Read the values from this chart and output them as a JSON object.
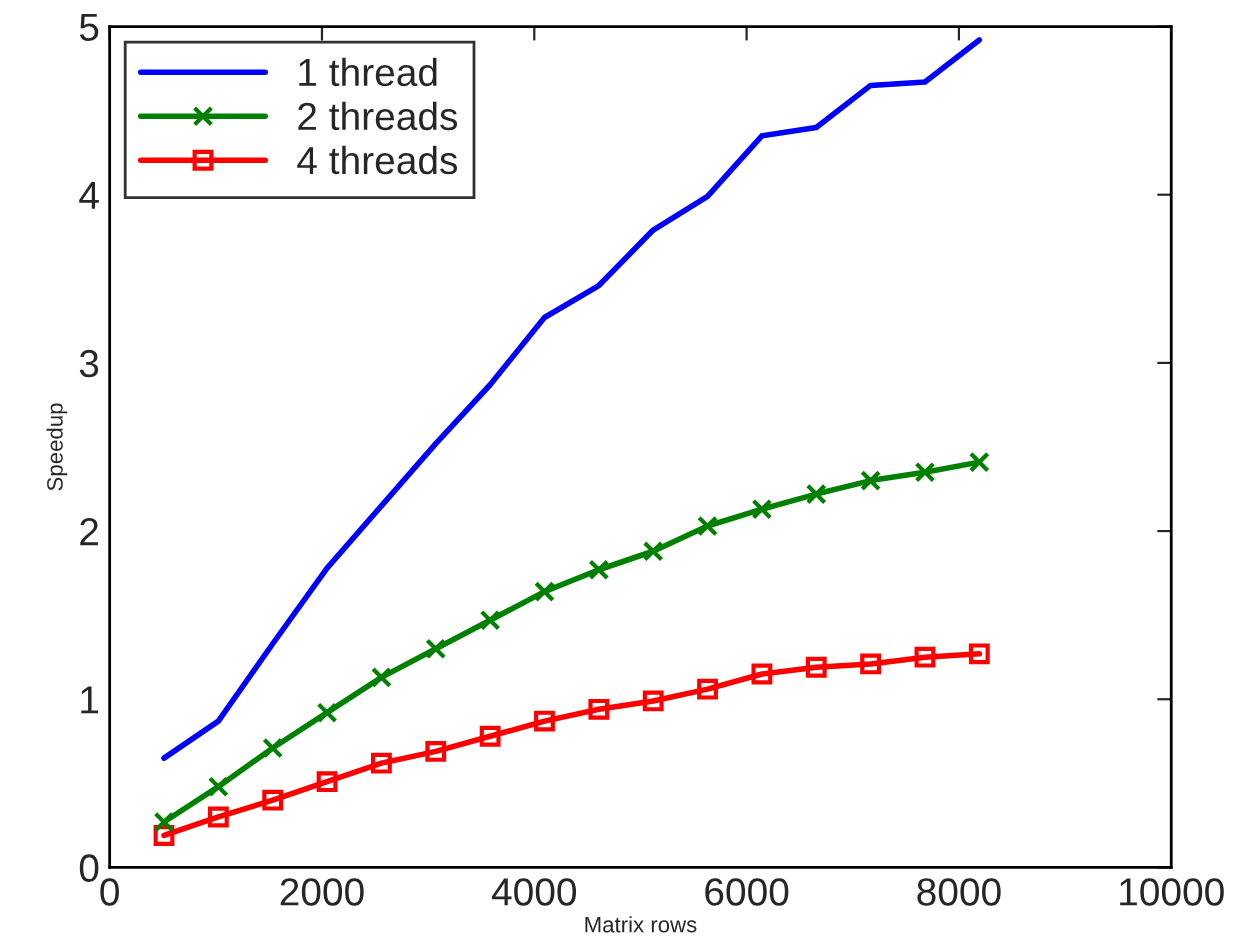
{
  "chart_data": {
    "type": "line",
    "xlabel": "Matrix rows",
    "ylabel": "Speedup",
    "x": [
      512,
      1024,
      1536,
      2048,
      2560,
      3072,
      3584,
      4096,
      4608,
      5120,
      5632,
      6144,
      6656,
      7168,
      7680,
      8192
    ],
    "series": [
      {
        "name": "1 thread",
        "color": "#0000ff",
        "marker": "none",
        "values": [
          0.65,
          0.87,
          1.33,
          1.78,
          2.15,
          2.52,
          2.87,
          3.27,
          3.46,
          3.79,
          3.99,
          4.35,
          4.4,
          4.65,
          4.67,
          4.92
        ]
      },
      {
        "name": "2 threads",
        "color": "#008000",
        "marker": "cross",
        "values": [
          0.27,
          0.48,
          0.71,
          0.92,
          1.13,
          1.3,
          1.47,
          1.64,
          1.77,
          1.88,
          2.03,
          2.13,
          2.22,
          2.3,
          2.35,
          2.41
        ]
      },
      {
        "name": "4 threads",
        "color": "#ff0000",
        "marker": "square",
        "values": [
          0.19,
          0.3,
          0.4,
          0.51,
          0.62,
          0.69,
          0.78,
          0.87,
          0.94,
          0.99,
          1.06,
          1.15,
          1.19,
          1.21,
          1.25,
          1.27
        ]
      }
    ],
    "xlim": [
      0,
      10000
    ],
    "xticks": [
      0,
      2000,
      4000,
      6000,
      8000,
      10000
    ],
    "ylim": [
      0,
      5
    ],
    "yticks": [
      0,
      1,
      2,
      3,
      4,
      5
    ],
    "grid": false,
    "legend": "top left",
    "line_style": "solid"
  }
}
